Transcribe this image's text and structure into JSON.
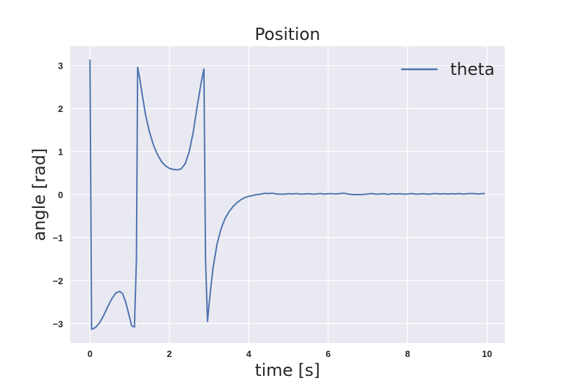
{
  "chart_data": {
    "type": "line",
    "title": "Position",
    "xlabel": "time [s]",
    "ylabel": "angle [rad]",
    "xlim": [
      -0.5,
      10.45
    ],
    "ylim": [
      -3.45,
      3.45
    ],
    "xticks": [
      0,
      2,
      4,
      6,
      8,
      10
    ],
    "yticks": [
      -3,
      -2,
      -1,
      0,
      1,
      2,
      3
    ],
    "ytick_labels": [
      "−3",
      "−2",
      "−1",
      "0",
      "1",
      "2",
      "3"
    ],
    "grid": true,
    "background": "#e9e9f1",
    "grid_color": "#ffffff",
    "legend_position": "top-right",
    "series": [
      {
        "name": "theta",
        "color": "#4c72b0",
        "x": [
          0,
          0.04,
          0.08,
          0.15,
          0.25,
          0.35,
          0.45,
          0.55,
          0.65,
          0.75,
          0.82,
          0.9,
          0.98,
          1.05,
          1.12,
          1.17,
          1.2,
          1.25,
          1.32,
          1.4,
          1.5,
          1.6,
          1.7,
          1.8,
          1.9,
          2.0,
          2.1,
          2.2,
          2.3,
          2.4,
          2.5,
          2.6,
          2.7,
          2.8,
          2.87,
          2.91,
          2.96,
          3.0,
          3.05,
          3.1,
          3.2,
          3.3,
          3.4,
          3.5,
          3.6,
          3.7,
          3.8,
          3.9,
          4.0,
          4.1,
          4.2,
          4.3,
          4.4,
          4.5,
          4.6,
          4.7,
          4.8,
          4.9,
          5.0,
          5.1,
          5.2,
          5.3,
          5.4,
          5.5,
          5.6,
          5.7,
          5.8,
          5.9,
          6.0,
          6.1,
          6.2,
          6.3,
          6.4,
          6.5,
          6.6,
          6.7,
          6.8,
          6.9,
          7.0,
          7.1,
          7.2,
          7.3,
          7.4,
          7.5,
          7.6,
          7.7,
          7.8,
          7.9,
          8.0,
          8.1,
          8.2,
          8.3,
          8.4,
          8.5,
          8.6,
          8.7,
          8.8,
          8.9,
          9.0,
          9.1,
          9.2,
          9.3,
          9.4,
          9.5,
          9.6,
          9.7,
          9.8,
          9.9,
          9.95
        ],
        "y": [
          3.14,
          -3.13,
          -3.12,
          -3.08,
          -2.97,
          -2.8,
          -2.6,
          -2.42,
          -2.29,
          -2.25,
          -2.3,
          -2.5,
          -2.79,
          -3.05,
          -3.08,
          -1.5,
          2.96,
          2.72,
          2.3,
          1.85,
          1.45,
          1.15,
          0.93,
          0.77,
          0.67,
          0.61,
          0.585,
          0.575,
          0.6,
          0.72,
          1.0,
          1.45,
          2.05,
          2.6,
          2.92,
          -1.5,
          -2.95,
          -2.55,
          -2.1,
          -1.7,
          -1.15,
          -0.8,
          -0.56,
          -0.4,
          -0.28,
          -0.19,
          -0.12,
          -0.07,
          -0.04,
          -0.02,
          0.0,
          0.01,
          0.03,
          0.025,
          0.03,
          0.015,
          0.01,
          0.01,
          0.02,
          0.015,
          0.025,
          0.01,
          0.015,
          0.02,
          0.01,
          0.015,
          0.025,
          0.01,
          0.02,
          0.02,
          0.015,
          0.025,
          0.03,
          0.015,
          0.0,
          0.0,
          0.0,
          0.005,
          0.015,
          0.025,
          0.01,
          0.015,
          0.02,
          0.005,
          0.02,
          0.015,
          0.02,
          0.01,
          0.015,
          0.025,
          0.01,
          0.015,
          0.02,
          0.01,
          0.015,
          0.025,
          0.015,
          0.02,
          0.015,
          0.02,
          0.015,
          0.025,
          0.01,
          0.02,
          0.025,
          0.02,
          0.015,
          0.025,
          0.02
        ]
      }
    ]
  }
}
